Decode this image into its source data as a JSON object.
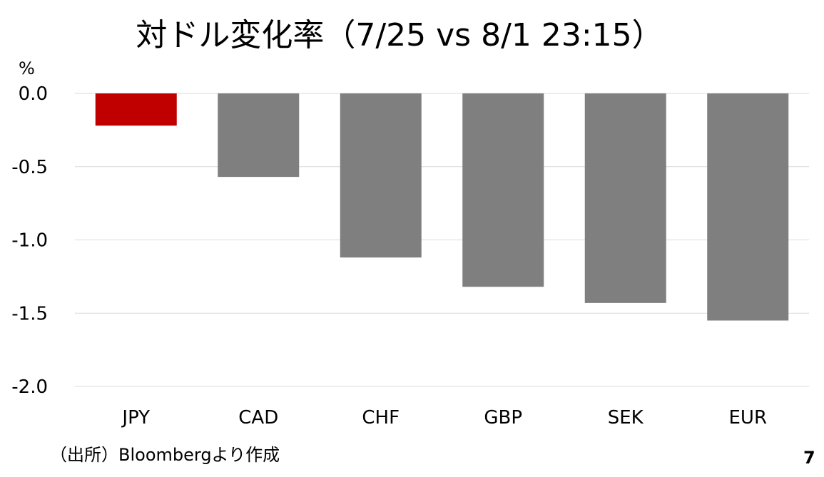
{
  "chart_data": {
    "type": "bar",
    "title": "対ドル変化率（7/25 vs 8/1 23:15）",
    "unit_label": "%",
    "categories": [
      "JPY",
      "CAD",
      "CHF",
      "GBP",
      "SEK",
      "EUR"
    ],
    "values": [
      -0.22,
      -0.57,
      -1.12,
      -1.32,
      -1.43,
      -1.55
    ],
    "ylim": [
      -2.0,
      0.0
    ],
    "yticks": [
      "0.0",
      "-0.5",
      "-1.0",
      "-1.5",
      "-2.0"
    ],
    "ytick_values": [
      0.0,
      -0.5,
      -1.0,
      -1.5,
      -2.0
    ],
    "grid": true,
    "colors": {
      "highlight": "#c00000",
      "default": "#7f7f7f",
      "gridline": "#d9d9d9"
    },
    "highlight_category": "JPY"
  },
  "footer": {
    "source": "（出所）Bloombergより作成",
    "page_number": "7"
  }
}
